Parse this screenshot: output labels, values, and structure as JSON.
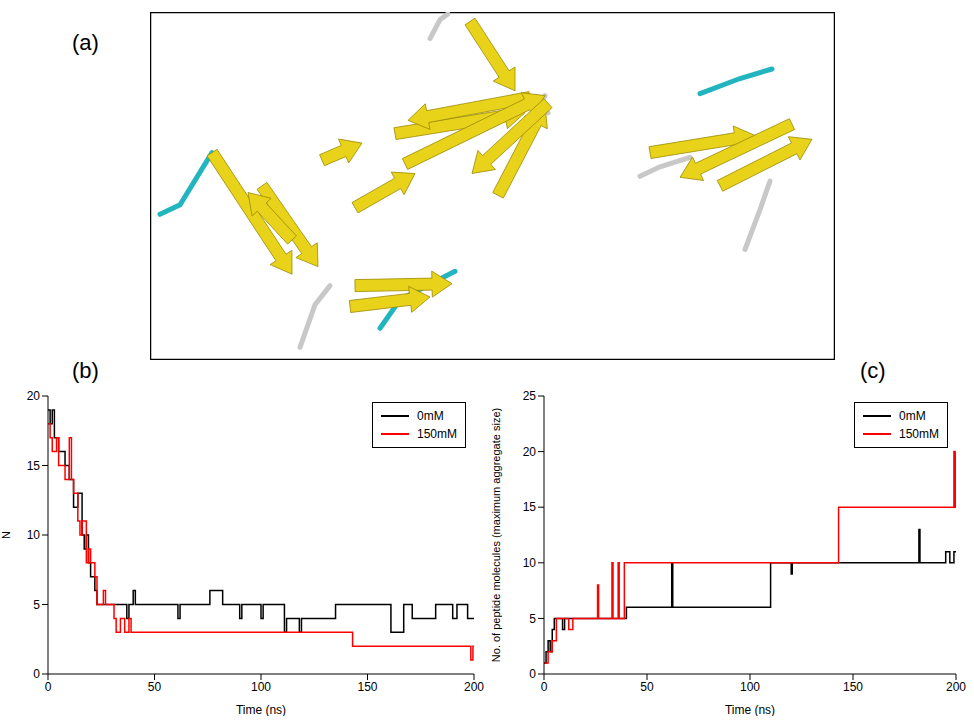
{
  "image": {
    "label": "(a)"
  },
  "chart_data": [
    {
      "type": "line",
      "title": "(b)",
      "x_label": "Time (ns)",
      "y_label": "N",
      "xlim": [
        0,
        200
      ],
      "xticks": [
        0,
        50,
        100,
        150,
        200
      ],
      "ylim": [
        0,
        20
      ],
      "yticks": [
        0,
        5,
        10,
        15,
        20
      ],
      "line_style": "step",
      "legend": "upper right",
      "grid": false,
      "series": [
        {
          "name": "0mM",
          "color": "#000000",
          "x": [
            0,
            1,
            2,
            3,
            5,
            8,
            10,
            12,
            14,
            16,
            17,
            18,
            19,
            20,
            22,
            23,
            37,
            38,
            40,
            41,
            61,
            62,
            76,
            82,
            90,
            91,
            100,
            101,
            111,
            112,
            118,
            119,
            135,
            161,
            167,
            171,
            182,
            190,
            192,
            197,
            200
          ],
          "values": [
            19,
            18,
            19,
            17,
            16,
            15,
            14,
            12,
            13,
            10,
            9,
            10,
            8,
            7,
            6,
            5,
            4,
            5,
            6,
            5,
            4,
            5,
            6,
            5,
            4,
            5,
            4,
            5,
            3,
            4,
            3,
            4,
            5,
            3,
            5,
            4,
            5,
            4,
            5,
            4,
            4
          ]
        },
        {
          "name": "150mM",
          "color": "#ff0000",
          "x": [
            0,
            1,
            2,
            4,
            5,
            8,
            10,
            11,
            12,
            14,
            15,
            16,
            18,
            19,
            20,
            22,
            23,
            26,
            27,
            31,
            32,
            34,
            36,
            38,
            39,
            143,
            198.5,
            199.5,
            200
          ],
          "values": [
            18,
            17,
            16,
            17,
            15,
            14,
            17,
            14,
            13,
            11,
            10,
            11,
            8,
            9,
            8,
            7,
            5,
            6,
            5,
            4,
            3,
            4,
            3,
            4,
            3,
            2,
            1,
            2,
            2
          ]
        }
      ]
    },
    {
      "type": "line",
      "title": "(c)",
      "x_label": "Time (ns)",
      "y_label": "No. of peptide molecules (maximum aggregate size)",
      "xlim": [
        0,
        200
      ],
      "xticks": [
        0,
        50,
        100,
        150,
        200
      ],
      "ylim": [
        0,
        25
      ],
      "yticks": [
        0,
        5,
        10,
        15,
        20,
        25
      ],
      "line_style": "step",
      "legend": "upper right",
      "grid": false,
      "series": [
        {
          "name": "0mM",
          "color": "#000000",
          "x": [
            0,
            1,
            2,
            3,
            4,
            5,
            9,
            10,
            20,
            40,
            62,
            62.5,
            110,
            120,
            120.5,
            182,
            182.5,
            195,
            197,
            199,
            200
          ],
          "values": [
            1,
            2,
            3,
            2,
            4,
            5,
            4,
            5,
            5,
            6,
            10,
            6,
            10,
            9,
            10,
            13,
            10,
            11,
            10,
            11,
            11
          ]
        },
        {
          "name": "150mM",
          "color": "#ff0000",
          "x": [
            0,
            2,
            4,
            6,
            12,
            14,
            26,
            26.5,
            33,
            33.5,
            36,
            36.5,
            39,
            143,
            199,
            199.5,
            200
          ],
          "values": [
            1,
            2,
            3,
            5,
            4,
            5,
            8,
            5,
            10,
            5,
            10,
            5,
            10,
            15,
            20,
            15,
            20
          ]
        }
      ]
    }
  ]
}
